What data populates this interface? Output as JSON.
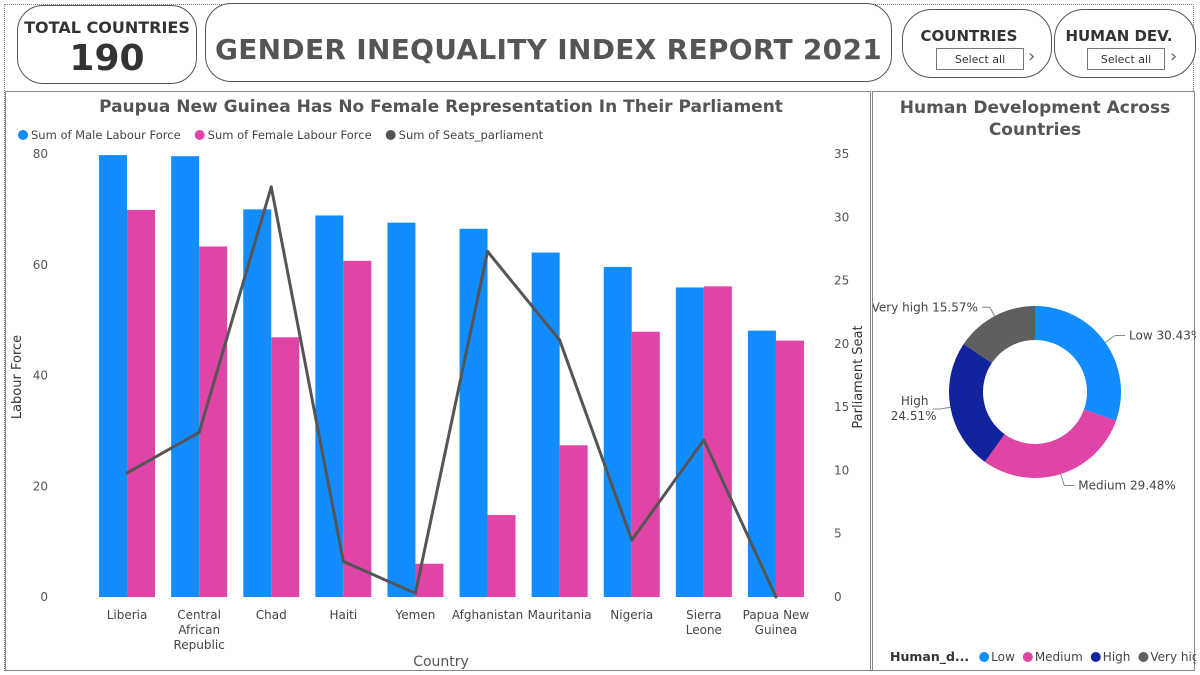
{
  "kpi": {
    "label": "TOTAL COUNTRIES",
    "value": "190"
  },
  "report_title": "GENDER INEQUALITY INDEX REPORT 2021",
  "slicers": [
    {
      "title": "COUNTRIES",
      "button": "Select all"
    },
    {
      "title": "HUMAN DEV.",
      "button": "Select all"
    }
  ],
  "colors": {
    "male": "#118DFF",
    "female": "#E044A7",
    "seats": "#555555",
    "low": "#118DFF",
    "medium": "#E044A7",
    "high": "#12239E",
    "very_high": "#5F5F5F"
  },
  "chart_data": [
    {
      "type": "bar",
      "title": "Paupua New Guinea Has No Female Representation In Their Parliament",
      "categories": [
        [
          "Liberia"
        ],
        [
          "Central",
          "African",
          "Republic"
        ],
        [
          "Chad"
        ],
        [
          "Haiti"
        ],
        [
          "Yemen"
        ],
        [
          "Afghanistan"
        ],
        [
          "Mauritania"
        ],
        [
          "Nigeria"
        ],
        [
          "Sierra",
          "Leone"
        ],
        [
          "Papua New",
          "Guinea"
        ]
      ],
      "series": [
        {
          "name": "Sum of Male Labour Force",
          "axis": "left",
          "kind": "bar",
          "values": [
            79.8,
            79.6,
            70.0,
            68.9,
            67.6,
            66.5,
            62.2,
            59.6,
            55.9,
            48.1
          ]
        },
        {
          "name": "Sum of Female Labour Force",
          "axis": "left",
          "kind": "bar",
          "values": [
            69.9,
            63.3,
            46.9,
            60.7,
            6.0,
            14.8,
            27.4,
            47.9,
            56.1,
            46.3
          ]
        },
        {
          "name": "Sum of Seats_parliament",
          "axis": "right",
          "kind": "line",
          "values": [
            9.8,
            13.0,
            32.4,
            2.8,
            0.3,
            27.3,
            20.3,
            4.5,
            12.4,
            0.0
          ]
        }
      ],
      "xlabel": "Country",
      "ylabel": "Labour Force",
      "y2label": "Parliament Seat",
      "ylim": [
        0,
        80
      ],
      "yticks": [
        0,
        20,
        40,
        60,
        80
      ],
      "y2lim": [
        0,
        35
      ],
      "y2ticks": [
        0,
        5,
        10,
        15,
        20,
        25,
        30,
        35
      ],
      "legend": "top-left"
    },
    {
      "type": "pie",
      "variant": "donut",
      "title": "Human Development Across Countries",
      "title_lines": [
        "Human Development Across",
        "Countries"
      ],
      "legend_title": "Human_d...",
      "legend": "bottom",
      "slices": [
        {
          "name": "Low",
          "value": 30.43,
          "label": "Low 30.43%"
        },
        {
          "name": "Medium",
          "value": 29.48,
          "label": "Medium 29.48%"
        },
        {
          "name": "High",
          "value": 24.51,
          "label_lines": [
            "High",
            "24.51%"
          ]
        },
        {
          "name": "Very high",
          "value": 15.57,
          "label": "Very high 15.57%"
        }
      ]
    }
  ]
}
